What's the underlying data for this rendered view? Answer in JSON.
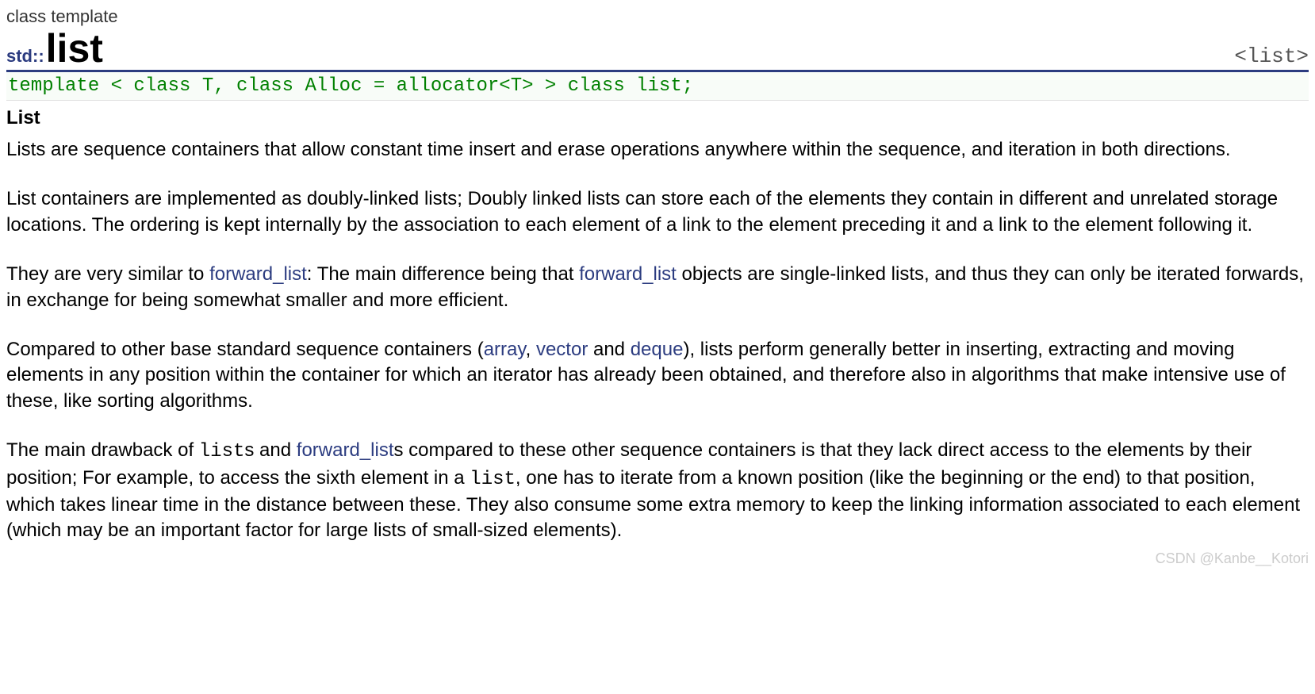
{
  "header": {
    "kicker": "class template",
    "prefix": "std::",
    "name": "list",
    "tag": "<list>"
  },
  "signature": "template < class T, class Alloc = allocator<T> > class list;",
  "section_title": "List",
  "paragraphs": {
    "p1": "Lists are sequence containers that allow constant time insert and erase operations anywhere within the sequence, and iteration in both directions.",
    "p2": "List containers are implemented as doubly-linked lists; Doubly linked lists can store each of the elements they contain in different and unrelated storage locations. The ordering is kept internally by the association to each element of a link to the element preceding it and a link to the element following it.",
    "p3a": "They are very similar to ",
    "p3_link1": "forward_list",
    "p3b": ": The main difference being that ",
    "p3_link2": "forward_list",
    "p3c": " objects are single-linked lists, and thus they can only be iterated forwards, in exchange for being somewhat smaller and more efficient.",
    "p4a": "Compared to other base standard sequence containers (",
    "p4_link1": "array",
    "p4b": ", ",
    "p4_link2": "vector",
    "p4c": " and ",
    "p4_link3": "deque",
    "p4d": "), lists perform generally better in inserting, extracting and moving elements in any position within the container for which an iterator has already been obtained, and therefore also in algorithms that make intensive use of these, like sorting algorithms.",
    "p5a": "The main drawback of ",
    "p5_mono1": "list",
    "p5b": "s and ",
    "p5_link1": "forward_list",
    "p5c": "s compared to these other sequence containers is that they lack direct access to the elements by their position; For example, to access the sixth element in a ",
    "p5_mono2": "list",
    "p5d": ", one has to iterate from a known position (like the beginning or the end) to that position, which takes linear time in the distance between these. They also consume some extra memory to keep the linking information associated to each element (which may be an important factor for large lists of small-sized elements)."
  },
  "watermark": "CSDN @Kanbe__Kotori",
  "colors": {
    "accent": "#2c3c80",
    "signature": "#008000",
    "text": "#000000",
    "watermark": "#cccccc",
    "background": "#ffffff"
  },
  "fonts": {
    "body": "Verdana",
    "mono": "Courier New",
    "body_size_pt": 18,
    "title_size_pt": 38
  }
}
